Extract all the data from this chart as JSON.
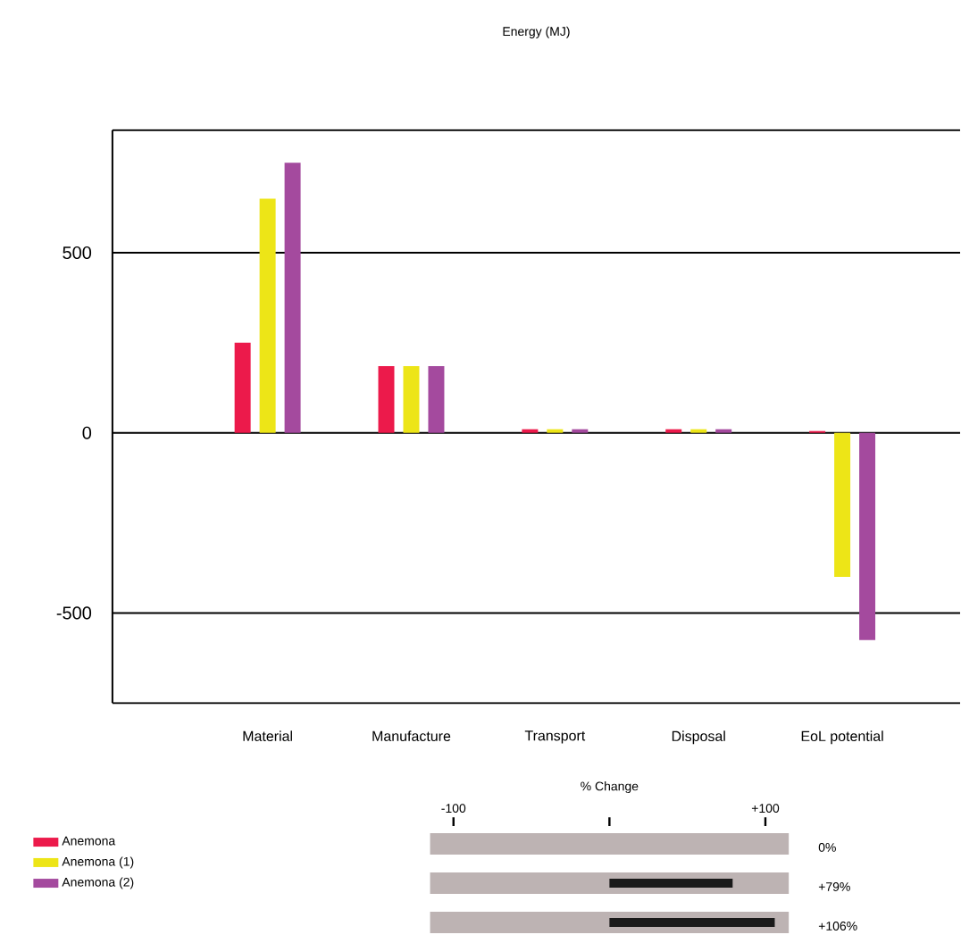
{
  "chart_data": [
    {
      "type": "bar",
      "title": "Energy (MJ)",
      "categories": [
        "Material",
        "Manufacture",
        "Transport",
        "Disposal",
        "EoL potential"
      ],
      "series": [
        {
          "name": "Anemona",
          "color": "#ec1a4b",
          "values": [
            250,
            185,
            10,
            10,
            5
          ]
        },
        {
          "name": "Anemona (1)",
          "color": "#ede517",
          "values": [
            650,
            185,
            10,
            10,
            -400
          ]
        },
        {
          "name": "Anemona (2)",
          "color": "#a44a9e",
          "values": [
            750,
            185,
            10,
            10,
            -575
          ]
        }
      ],
      "ylim": [
        -750,
        840
      ],
      "yticks": [
        -500,
        0,
        500
      ],
      "grid": "y",
      "legend": "bottom left"
    },
    {
      "type": "bar",
      "orientation": "horizontal",
      "title": "% Change",
      "categories": [
        "0%",
        "+79%",
        "+106%"
      ],
      "series": [
        {
          "color": "#bdb3b3",
          "values": [
            230,
            230,
            230
          ],
          "base": [
            -115,
            -115,
            -115
          ]
        },
        {
          "color": "#1a1a1a",
          "values": [
            0,
            79,
            106
          ]
        }
      ],
      "xlim": [
        -115,
        115
      ],
      "xticks": [
        {
          "value": -100,
          "label": "-100"
        },
        {
          "value": 0,
          "label": null
        },
        {
          "value": 100,
          "label": "+100"
        }
      ],
      "grid": false
    }
  ]
}
